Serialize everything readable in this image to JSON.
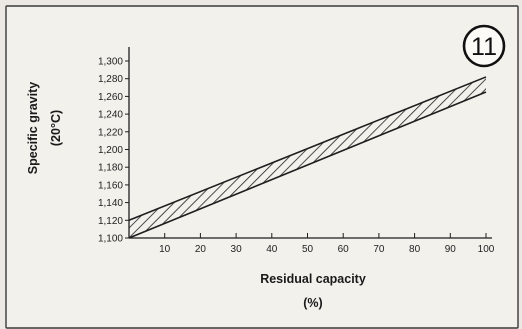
{
  "figure_number": "11",
  "chart_data": {
    "type": "area",
    "xlabel": "Residual capacity",
    "xlabel_unit": "(%)",
    "ylabel": "Specific gravity",
    "ylabel_unit": "(20°C)",
    "xlim": [
      0,
      100
    ],
    "ylim": [
      1.1,
      1.3
    ],
    "x_ticks": [
      10,
      20,
      30,
      40,
      50,
      60,
      70,
      80,
      90,
      100
    ],
    "y_ticks": [
      1.1,
      1.12,
      1.14,
      1.16,
      1.18,
      1.2,
      1.22,
      1.24,
      1.26,
      1.28,
      1.3
    ],
    "x_tick_labels": [
      "10",
      "20",
      "30",
      "40",
      "50",
      "60",
      "70",
      "80",
      "90",
      "100"
    ],
    "y_tick_labels": [
      "1,100",
      "1,120",
      "1,140",
      "1,160",
      "1,180",
      "1,200",
      "1,220",
      "1,240",
      "1,260",
      "1,280",
      "1,300"
    ],
    "band": {
      "x": [
        0,
        100
      ],
      "lower": [
        1.1,
        1.265
      ],
      "upper": [
        1.12,
        1.282
      ]
    },
    "band_color": "#1e1e1e",
    "grid": false
  }
}
